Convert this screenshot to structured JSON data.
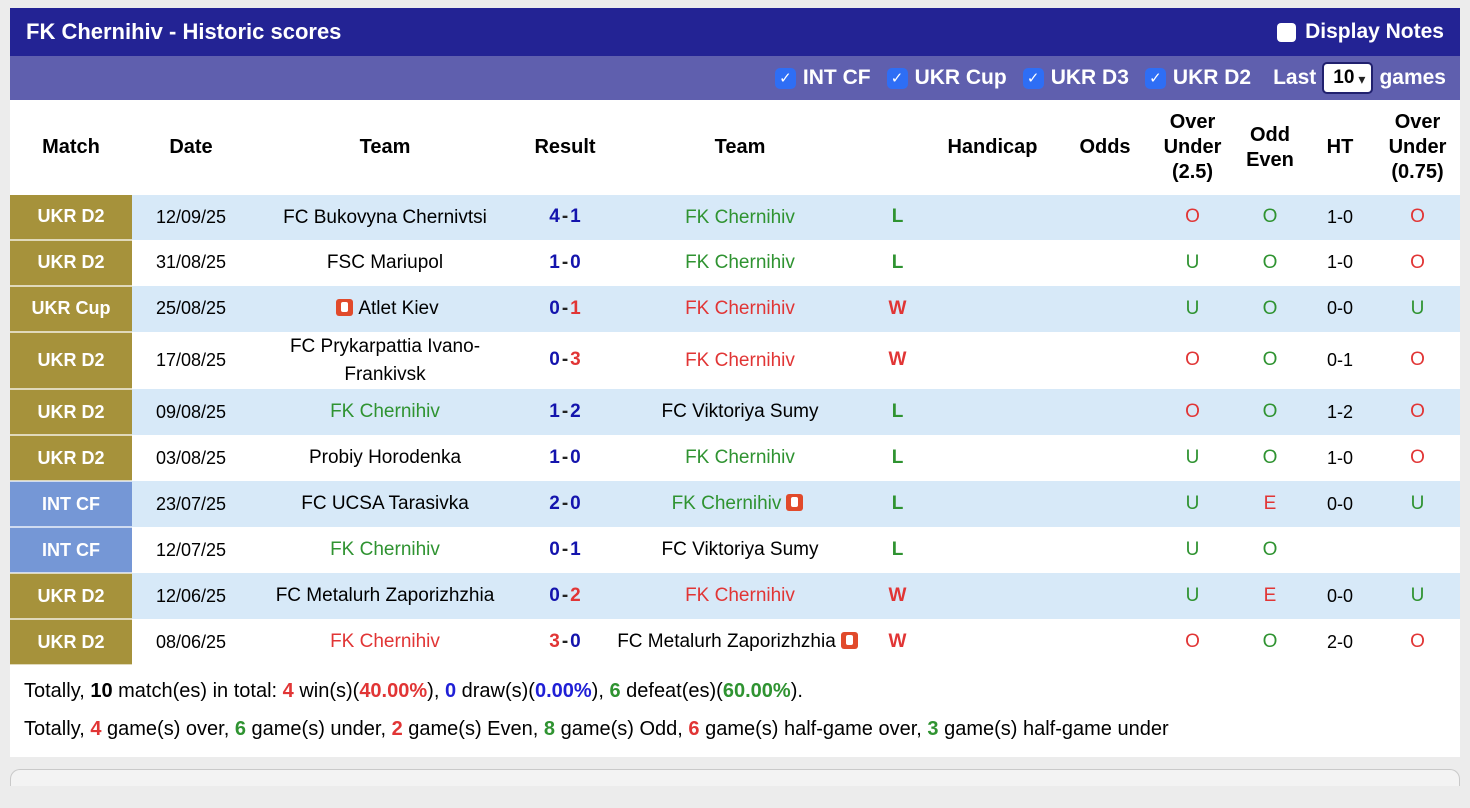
{
  "colors": {
    "header_bg": "#232394",
    "filter_bg": "#5f5fae",
    "badge_gold": "#a6923b",
    "badge_blue": "#7597d6",
    "row_alt": "#d7e9f8",
    "checkbox_blue": "#2e6ef5",
    "win_red": "#e13535",
    "loss_green": "#2f9331",
    "score_navy": "#1414ad",
    "draw_blue": "#1f1fd6",
    "text_black": "#000000"
  },
  "header": {
    "title": "FK Chernihiv - Historic scores",
    "display_notes": "Display Notes"
  },
  "filters": {
    "items": [
      {
        "label": "INT CF",
        "checked": true
      },
      {
        "label": "UKR Cup",
        "checked": true
      },
      {
        "label": "UKR D3",
        "checked": true
      },
      {
        "label": "UKR D2",
        "checked": true
      }
    ],
    "last_label": "Last",
    "games_value": "10",
    "games_label": "games"
  },
  "table": {
    "headers": {
      "match": "Match",
      "date": "Date",
      "team1": "Team",
      "result": "Result",
      "team2": "Team",
      "wl": "",
      "handicap": "Handicap",
      "odds": "Odds",
      "ou25": [
        "Over",
        "Under",
        "(2.5)"
      ],
      "oddeven": [
        "Odd",
        "Even"
      ],
      "ht": "HT",
      "ou075": [
        "Over",
        "Under",
        "(0.75)"
      ]
    },
    "rows": [
      {
        "match": {
          "label": "UKR D2",
          "type": "gold"
        },
        "date": "12/09/25",
        "home": {
          "name": "FC Bukovyna Chernivtsi",
          "color": "black",
          "badge": ""
        },
        "score": {
          "home": "4",
          "away": "1",
          "home_color": "navy",
          "away_color": "navy"
        },
        "away": {
          "name": "FK Chernihiv",
          "color": "green",
          "badge": ""
        },
        "wl": {
          "label": "L",
          "color": "green"
        },
        "handicap": "",
        "odds": "",
        "ou25": {
          "label": "O",
          "color": "red"
        },
        "oddeven": {
          "label": "O",
          "color": "green"
        },
        "ht": "1-0",
        "ou075": {
          "label": "O",
          "color": "red"
        }
      },
      {
        "match": {
          "label": "UKR D2",
          "type": "gold"
        },
        "date": "31/08/25",
        "home": {
          "name": "FSC Mariupol",
          "color": "black",
          "badge": ""
        },
        "score": {
          "home": "1",
          "away": "0",
          "home_color": "navy",
          "away_color": "navy"
        },
        "away": {
          "name": "FK Chernihiv",
          "color": "green",
          "badge": ""
        },
        "wl": {
          "label": "L",
          "color": "green"
        },
        "handicap": "",
        "odds": "",
        "ou25": {
          "label": "U",
          "color": "green"
        },
        "oddeven": {
          "label": "O",
          "color": "green"
        },
        "ht": "1-0",
        "ou075": {
          "label": "O",
          "color": "red"
        }
      },
      {
        "match": {
          "label": "UKR Cup",
          "type": "gold"
        },
        "date": "25/08/25",
        "home": {
          "name": "Atlet Kiev",
          "color": "black",
          "badge": "before"
        },
        "score": {
          "home": "0",
          "away": "1",
          "home_color": "navy",
          "away_color": "red"
        },
        "away": {
          "name": "FK Chernihiv",
          "color": "red",
          "badge": ""
        },
        "wl": {
          "label": "W",
          "color": "red"
        },
        "handicap": "",
        "odds": "",
        "ou25": {
          "label": "U",
          "color": "green"
        },
        "oddeven": {
          "label": "O",
          "color": "green"
        },
        "ht": "0-0",
        "ou075": {
          "label": "U",
          "color": "green"
        }
      },
      {
        "match": {
          "label": "UKR D2",
          "type": "gold"
        },
        "date": "17/08/25",
        "home": {
          "name": "FC Prykarpattia Ivano-Frankivsk",
          "color": "black",
          "badge": ""
        },
        "score": {
          "home": "0",
          "away": "3",
          "home_color": "navy",
          "away_color": "red"
        },
        "away": {
          "name": "FK Chernihiv",
          "color": "red",
          "badge": ""
        },
        "wl": {
          "label": "W",
          "color": "red"
        },
        "handicap": "",
        "odds": "",
        "ou25": {
          "label": "O",
          "color": "red"
        },
        "oddeven": {
          "label": "O",
          "color": "green"
        },
        "ht": "0-1",
        "ou075": {
          "label": "O",
          "color": "red"
        }
      },
      {
        "match": {
          "label": "UKR D2",
          "type": "gold"
        },
        "date": "09/08/25",
        "home": {
          "name": "FK Chernihiv",
          "color": "green",
          "badge": ""
        },
        "score": {
          "home": "1",
          "away": "2",
          "home_color": "navy",
          "away_color": "navy"
        },
        "away": {
          "name": "FC Viktoriya Sumy",
          "color": "black",
          "badge": ""
        },
        "wl": {
          "label": "L",
          "color": "green"
        },
        "handicap": "",
        "odds": "",
        "ou25": {
          "label": "O",
          "color": "red"
        },
        "oddeven": {
          "label": "O",
          "color": "green"
        },
        "ht": "1-2",
        "ou075": {
          "label": "O",
          "color": "red"
        }
      },
      {
        "match": {
          "label": "UKR D2",
          "type": "gold"
        },
        "date": "03/08/25",
        "home": {
          "name": "Probiy Horodenka",
          "color": "black",
          "badge": ""
        },
        "score": {
          "home": "1",
          "away": "0",
          "home_color": "navy",
          "away_color": "navy"
        },
        "away": {
          "name": "FK Chernihiv",
          "color": "green",
          "badge": ""
        },
        "wl": {
          "label": "L",
          "color": "green"
        },
        "handicap": "",
        "odds": "",
        "ou25": {
          "label": "U",
          "color": "green"
        },
        "oddeven": {
          "label": "O",
          "color": "green"
        },
        "ht": "1-0",
        "ou075": {
          "label": "O",
          "color": "red"
        }
      },
      {
        "match": {
          "label": "INT CF",
          "type": "blue"
        },
        "date": "23/07/25",
        "home": {
          "name": "FC UCSA Tarasivka",
          "color": "black",
          "badge": ""
        },
        "score": {
          "home": "2",
          "away": "0",
          "home_color": "navy",
          "away_color": "navy"
        },
        "away": {
          "name": "FK Chernihiv",
          "color": "green",
          "badge": "after"
        },
        "wl": {
          "label": "L",
          "color": "green"
        },
        "handicap": "",
        "odds": "",
        "ou25": {
          "label": "U",
          "color": "green"
        },
        "oddeven": {
          "label": "E",
          "color": "red"
        },
        "ht": "0-0",
        "ou075": {
          "label": "U",
          "color": "green"
        }
      },
      {
        "match": {
          "label": "INT CF",
          "type": "blue"
        },
        "date": "12/07/25",
        "home": {
          "name": "FK Chernihiv",
          "color": "green",
          "badge": ""
        },
        "score": {
          "home": "0",
          "away": "1",
          "home_color": "navy",
          "away_color": "navy"
        },
        "away": {
          "name": "FC Viktoriya Sumy",
          "color": "black",
          "badge": ""
        },
        "wl": {
          "label": "L",
          "color": "green"
        },
        "handicap": "",
        "odds": "",
        "ou25": {
          "label": "U",
          "color": "green"
        },
        "oddeven": {
          "label": "O",
          "color": "green"
        },
        "ht": "",
        "ou075": {
          "label": "",
          "color": ""
        }
      },
      {
        "match": {
          "label": "UKR D2",
          "type": "gold"
        },
        "date": "12/06/25",
        "home": {
          "name": "FC Metalurh Zaporizhzhia",
          "color": "black",
          "badge": ""
        },
        "score": {
          "home": "0",
          "away": "2",
          "home_color": "navy",
          "away_color": "red"
        },
        "away": {
          "name": "FK Chernihiv",
          "color": "red",
          "badge": ""
        },
        "wl": {
          "label": "W",
          "color": "red"
        },
        "handicap": "",
        "odds": "",
        "ou25": {
          "label": "U",
          "color": "green"
        },
        "oddeven": {
          "label": "E",
          "color": "red"
        },
        "ht": "0-0",
        "ou075": {
          "label": "U",
          "color": "green"
        }
      },
      {
        "match": {
          "label": "UKR D2",
          "type": "gold"
        },
        "date": "08/06/25",
        "home": {
          "name": "FK Chernihiv",
          "color": "red",
          "badge": ""
        },
        "score": {
          "home": "3",
          "away": "0",
          "home_color": "red",
          "away_color": "navy"
        },
        "away": {
          "name": "FC Metalurh Zaporizhzhia",
          "color": "black",
          "badge": "after"
        },
        "wl": {
          "label": "W",
          "color": "red"
        },
        "handicap": "",
        "odds": "",
        "ou25": {
          "label": "O",
          "color": "red"
        },
        "oddeven": {
          "label": "O",
          "color": "green"
        },
        "ht": "2-0",
        "ou075": {
          "label": "O",
          "color": "red"
        }
      }
    ]
  },
  "summary": {
    "line1": [
      {
        "t": "Totally, ",
        "c": "black",
        "b": false
      },
      {
        "t": "10",
        "c": "black",
        "b": true
      },
      {
        "t": " match(es) in total: ",
        "c": "black",
        "b": false
      },
      {
        "t": "4",
        "c": "red",
        "b": true
      },
      {
        "t": " win(s)(",
        "c": "black",
        "b": false
      },
      {
        "t": "40.00%",
        "c": "red",
        "b": true
      },
      {
        "t": "), ",
        "c": "black",
        "b": false
      },
      {
        "t": "0",
        "c": "blue",
        "b": true
      },
      {
        "t": " draw(s)(",
        "c": "black",
        "b": false
      },
      {
        "t": "0.00%",
        "c": "blue",
        "b": true
      },
      {
        "t": "), ",
        "c": "black",
        "b": false
      },
      {
        "t": "6",
        "c": "green",
        "b": true
      },
      {
        "t": " defeat(es)(",
        "c": "black",
        "b": false
      },
      {
        "t": "60.00%",
        "c": "green",
        "b": true
      },
      {
        "t": ").",
        "c": "black",
        "b": false
      }
    ],
    "line2": [
      {
        "t": "Totally, ",
        "c": "black",
        "b": false
      },
      {
        "t": "4",
        "c": "red",
        "b": true
      },
      {
        "t": " game(s) over, ",
        "c": "black",
        "b": false
      },
      {
        "t": "6",
        "c": "green",
        "b": true
      },
      {
        "t": " game(s) under, ",
        "c": "black",
        "b": false
      },
      {
        "t": "2",
        "c": "red",
        "b": true
      },
      {
        "t": " game(s) Even, ",
        "c": "black",
        "b": false
      },
      {
        "t": "8",
        "c": "green",
        "b": true
      },
      {
        "t": " game(s) Odd, ",
        "c": "black",
        "b": false
      },
      {
        "t": "6",
        "c": "red",
        "b": true
      },
      {
        "t": " game(s) half-game over, ",
        "c": "black",
        "b": false
      },
      {
        "t": "3",
        "c": "green",
        "b": true
      },
      {
        "t": " game(s) half-game under",
        "c": "black",
        "b": false
      }
    ]
  }
}
